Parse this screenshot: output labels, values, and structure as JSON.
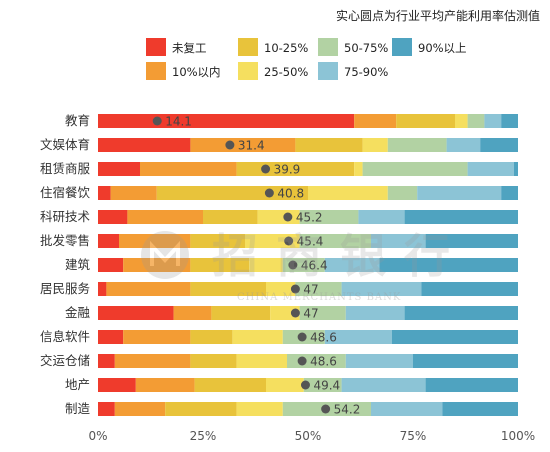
{
  "chart_data": {
    "type": "bar",
    "stacked": true,
    "orientation": "horizontal",
    "note": "实心圆点为行业平均产能利用率估测值",
    "categories": [
      "教育",
      "文娱体育",
      "租赁商服",
      "住宿餐饮",
      "科研技术",
      "批发零售",
      "建筑",
      "居民服务",
      "金融",
      "信息软件",
      "交运仓储",
      "地产",
      "制造"
    ],
    "series": [
      {
        "name": "未复工",
        "color": "#ef3b2c",
        "values": [
          61,
          22,
          10,
          3,
          7,
          5,
          6,
          2,
          18,
          6,
          4,
          9,
          4
        ]
      },
      {
        "name": "10%以内",
        "color": "#f39c34",
        "values": [
          10,
          25,
          23,
          11,
          18,
          17,
          16,
          20,
          9,
          16,
          18,
          14,
          12
        ]
      },
      {
        "name": "10-25%",
        "color": "#e8c33b",
        "values": [
          14,
          16,
          28,
          36,
          13,
          13,
          14,
          18,
          14,
          10,
          11,
          17,
          17
        ]
      },
      {
        "name": "25-50%",
        "color": "#f5df5f",
        "values": [
          3,
          6,
          2,
          19,
          10,
          13,
          8,
          7,
          7,
          12,
          12,
          9,
          11
        ]
      },
      {
        "name": "50-75%",
        "color": "#b2d2a3",
        "values": [
          4,
          14,
          25,
          7,
          14,
          17,
          10,
          11,
          11,
          10,
          14,
          9,
          21
        ]
      },
      {
        "name": "75-90%",
        "color": "#8cc4d6",
        "values": [
          4,
          8,
          11,
          20,
          11,
          13,
          13,
          19,
          14,
          16,
          16,
          20,
          17
        ]
      },
      {
        "name": "90%以上",
        "color": "#4fa3c0",
        "values": [
          4,
          9,
          1,
          4,
          27,
          22,
          33,
          23,
          27,
          30,
          25,
          22,
          18
        ]
      }
    ],
    "averages": [
      14.1,
      31.4,
      39.9,
      40.8,
      45.2,
      45.4,
      46.4,
      47,
      47,
      48.6,
      48.6,
      49.4,
      54.2
    ],
    "average_labels": [
      "14.1",
      "31.4",
      "39.9",
      "40.8",
      "45.2",
      "45.4",
      "46.4",
      "47",
      "47",
      "48.6",
      "48.6",
      "49.4",
      "54.2"
    ],
    "xlim": [
      0,
      100
    ],
    "x_ticks": [
      "0%",
      "25%",
      "50%",
      "75%",
      "100%"
    ],
    "legend_position": "top",
    "grid": false
  },
  "watermark": {
    "chinese": "招商银行",
    "english": "CHINA MERCHANTS BANK"
  }
}
